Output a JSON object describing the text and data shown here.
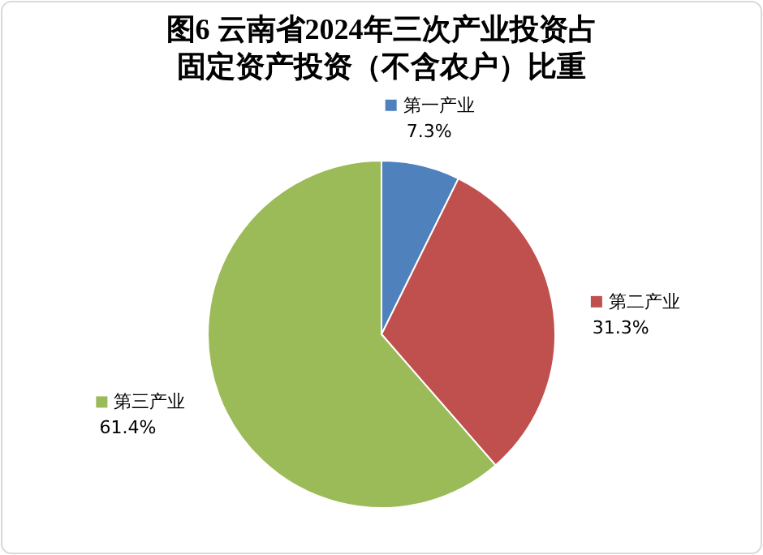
{
  "chart_data": {
    "type": "pie",
    "title": "图6  云南省2024年三次产业投资占固定资产投资（不含农户）比重",
    "categories": [
      "第一产业",
      "第二产业",
      "第三产业"
    ],
    "values": [
      7.3,
      31.3,
      61.4
    ],
    "colors": [
      "#4f81bd",
      "#c0504d",
      "#9bbb59"
    ],
    "value_labels": [
      "7.3%",
      "31.3%",
      "61.4%"
    ],
    "legend": "right"
  }
}
